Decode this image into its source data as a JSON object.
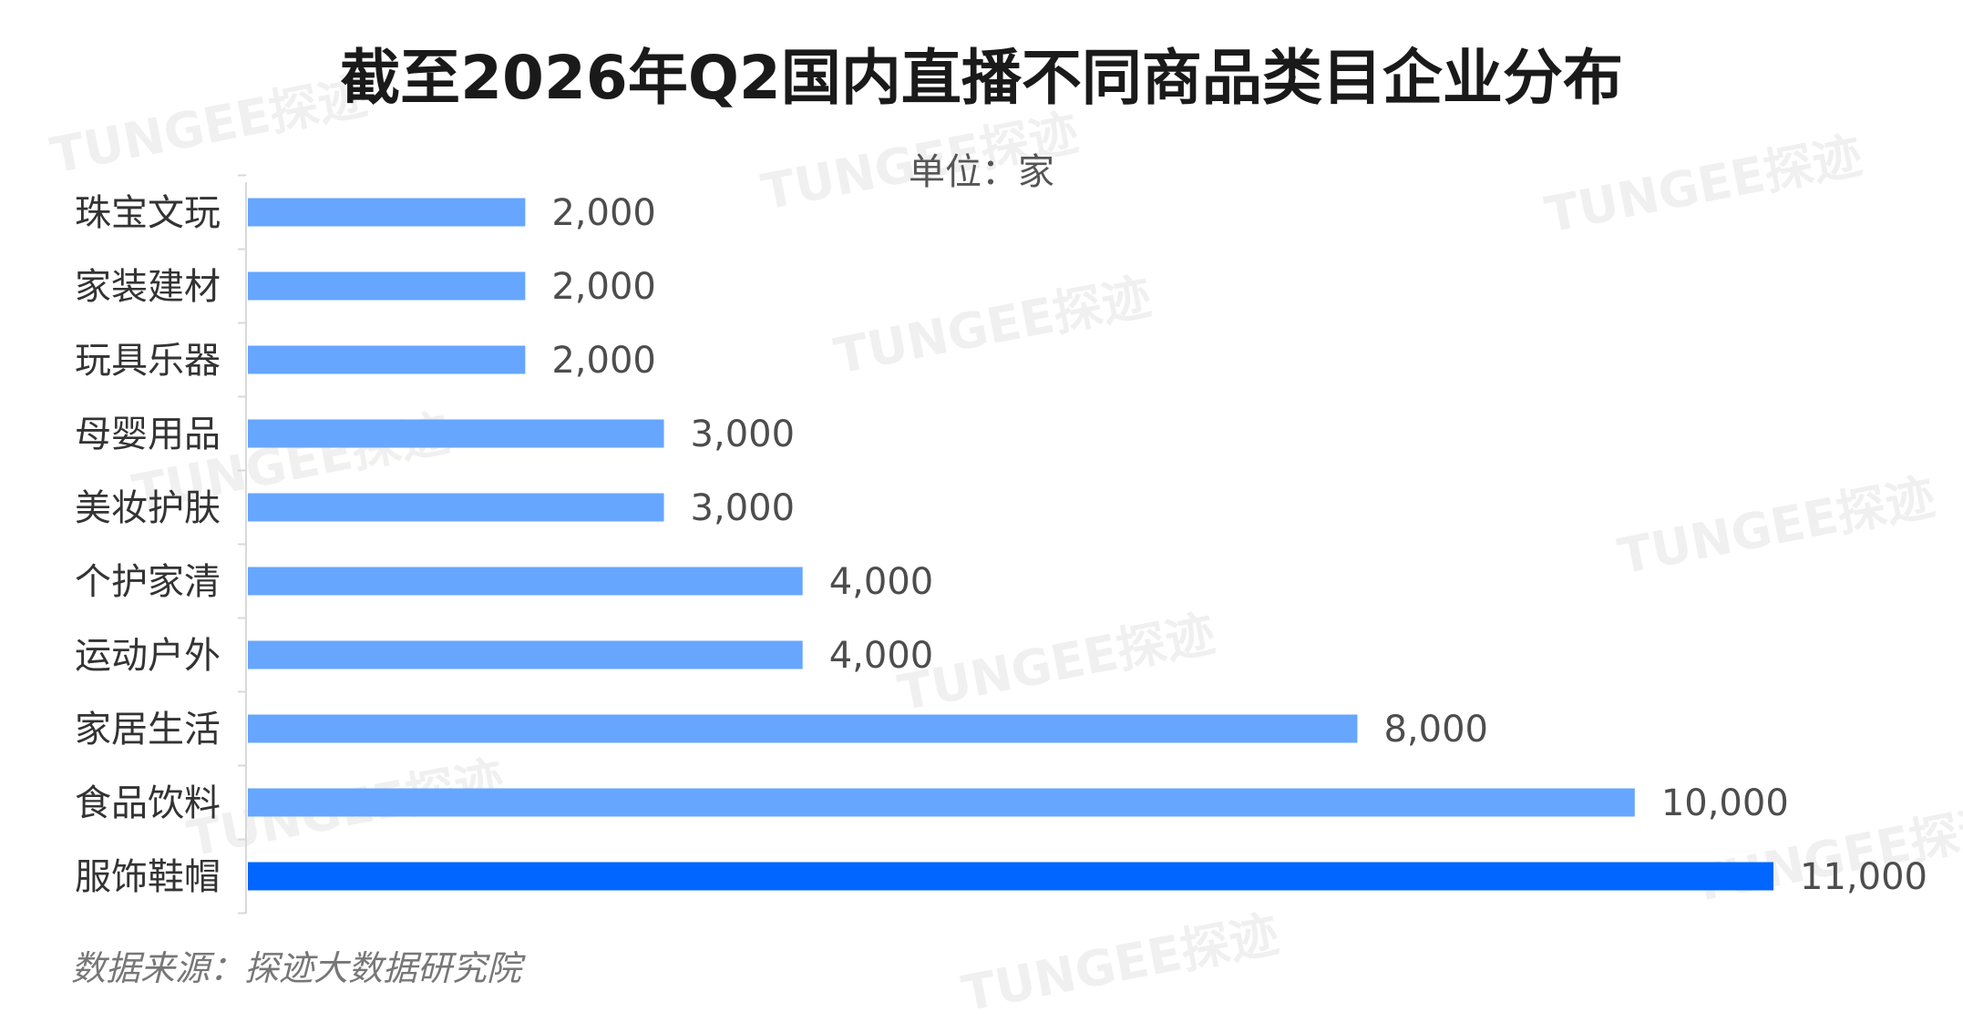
{
  "colors": {
    "bar": "#66A6FF",
    "highlight_bar": "#0066FF",
    "axis": "#D9D9D9"
  },
  "chart_data": {
    "type": "bar",
    "orientation": "horizontal",
    "title": "截至2026年Q2国内直播不同商品类目企业分布",
    "unit_label": "单位：家",
    "categories": [
      "珠宝文玩",
      "家装建材",
      "玩具乐器",
      "母婴用品",
      "美妆护肤",
      "个护家清",
      "运动户外",
      "家居生活",
      "食品饮料",
      "服饰鞋帽"
    ],
    "values": [
      2000,
      2000,
      2000,
      3000,
      3000,
      4000,
      4000,
      8000,
      10000,
      11000
    ],
    "value_labels": [
      "2,000",
      "2,000",
      "2,000",
      "3,000",
      "3,000",
      "4,000",
      "4,000",
      "8,000",
      "10,000",
      "11,000"
    ],
    "highlight_category": "服饰鞋帽",
    "xlim": [
      0,
      11000
    ],
    "grid": false,
    "legend": "none"
  },
  "source": "数据来源：探迹大数据研究院",
  "watermark": "TUNGEE探迹"
}
